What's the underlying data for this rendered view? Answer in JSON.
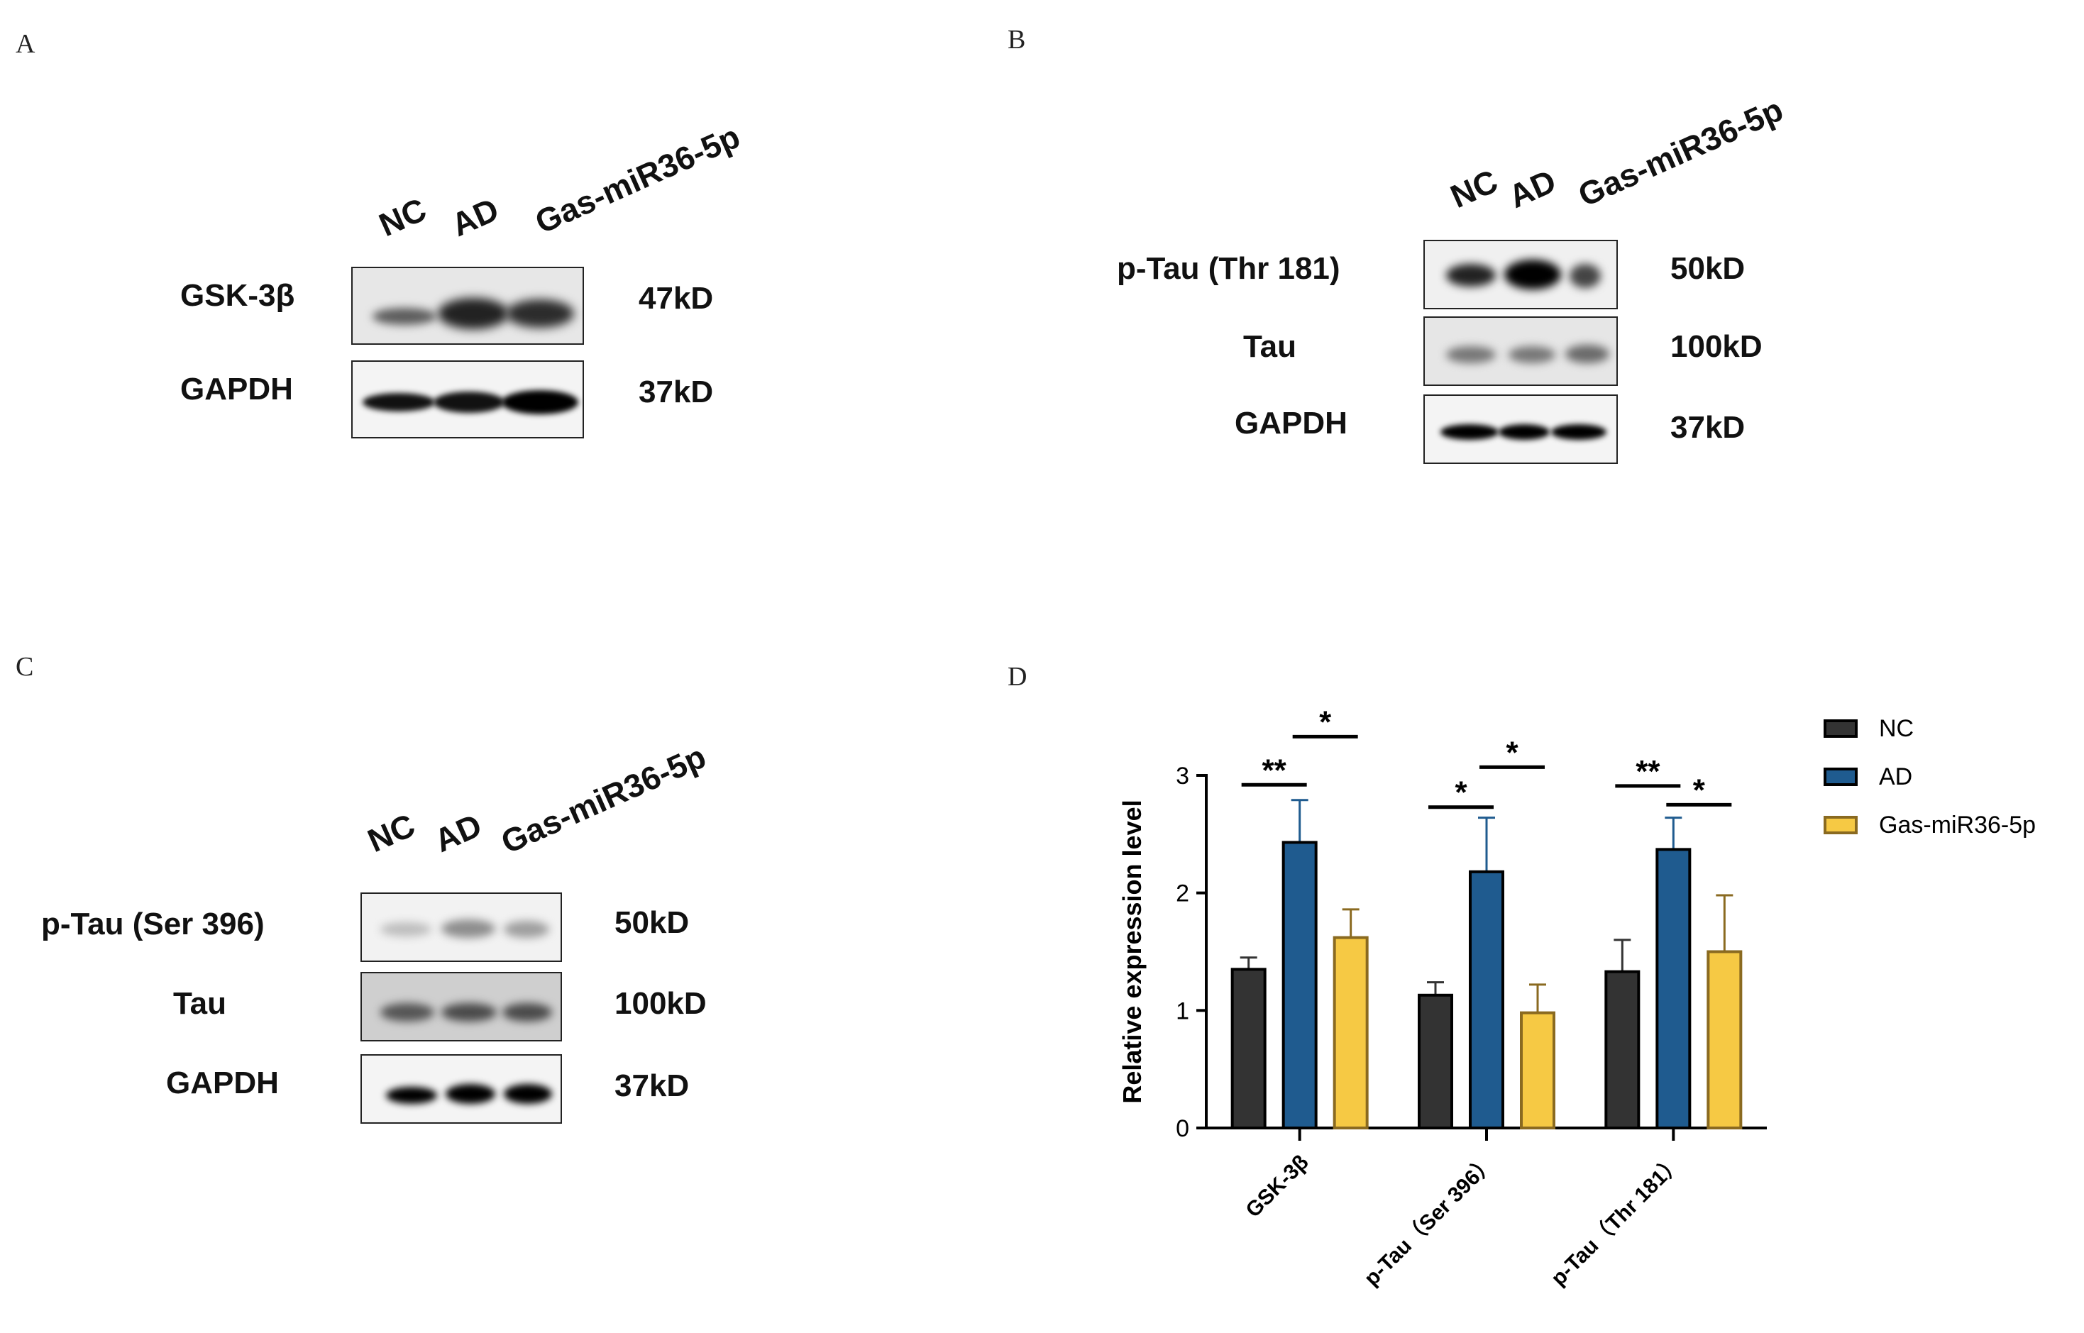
{
  "panels": {
    "a": {
      "letter": "A",
      "lanes": [
        "NC",
        "AD",
        "Gas-miR36-5p"
      ],
      "rows": [
        {
          "protein": "GSK-3β",
          "size": "47kD"
        },
        {
          "protein": "GAPDH",
          "size": "37kD"
        }
      ]
    },
    "b": {
      "letter": "B",
      "lanes": [
        "NC",
        "AD",
        "Gas-miR36-5p"
      ],
      "rows": [
        {
          "protein": "p-Tau (Thr 181)",
          "size": "50kD"
        },
        {
          "protein": "Tau",
          "size": "100kD"
        },
        {
          "protein": "GAPDH",
          "size": "37kD"
        }
      ]
    },
    "c": {
      "letter": "C",
      "lanes": [
        "NC",
        "AD",
        "Gas-miR36-5p"
      ],
      "rows": [
        {
          "protein": "p-Tau (Ser 396)",
          "size": "50kD"
        },
        {
          "protein": "Tau",
          "size": "100kD"
        },
        {
          "protein": "GAPDH",
          "size": "37kD"
        }
      ]
    },
    "d": {
      "letter": "D"
    }
  },
  "chart_data": {
    "type": "bar",
    "title": "",
    "xlabel": "",
    "ylabel": "Relative expression level",
    "ylim": [
      0,
      3
    ],
    "yticks": [
      0,
      1,
      2,
      3
    ],
    "categories": [
      "GSK-3β",
      "p-Tau（Ser 396）",
      "p-Tau（Thr 181）"
    ],
    "legend_position": "top-right",
    "series": [
      {
        "name": "NC",
        "color": "#333333",
        "values": [
          1.35,
          1.13,
          1.33
        ],
        "errors": [
          0.1,
          0.11,
          0.27
        ]
      },
      {
        "name": "AD",
        "color": "#1f5b8f",
        "values": [
          2.43,
          2.18,
          2.37
        ],
        "errors": [
          0.36,
          0.46,
          0.27
        ]
      },
      {
        "name": "Gas-miR36-5p",
        "color": "#f6c944",
        "edge": "#8a6a20",
        "values": [
          1.62,
          0.98,
          1.5
        ],
        "errors": [
          0.24,
          0.24,
          0.48
        ]
      }
    ],
    "significance": [
      {
        "category": 0,
        "pair": "NC-AD",
        "label": "**"
      },
      {
        "category": 0,
        "pair": "AD-Gas",
        "label": "*"
      },
      {
        "category": 1,
        "pair": "NC-AD",
        "label": "*"
      },
      {
        "category": 1,
        "pair": "AD-Gas",
        "label": "*"
      },
      {
        "category": 2,
        "pair": "NC-AD",
        "label": "**"
      },
      {
        "category": 2,
        "pair": "AD-Gas",
        "label": "*"
      }
    ]
  }
}
